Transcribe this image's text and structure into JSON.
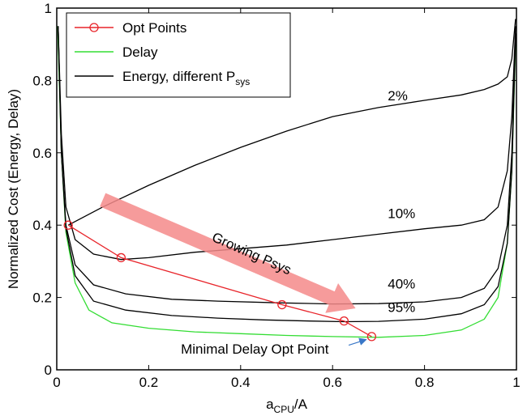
{
  "chart_data": {
    "type": "line",
    "xlabel": {
      "main": "a",
      "sub": "CPU",
      "suffix": "/A"
    },
    "ylabel": "Normalized Cost (Energy, Delay)",
    "xlim": [
      0,
      1
    ],
    "ylim": [
      0,
      1
    ],
    "xticks": [
      "0",
      "0.2",
      "0.4",
      "0.6",
      "0.8",
      "1"
    ],
    "yticks": [
      "0",
      "0.2",
      "0.4",
      "0.6",
      "0.8",
      "1"
    ],
    "xtick_values": [
      0,
      0.2,
      0.4,
      0.6,
      0.8,
      1
    ],
    "ytick_values": [
      0,
      0.2,
      0.4,
      0.6,
      0.8,
      1
    ],
    "grid": false,
    "legend_position": "top-left",
    "legend": [
      {
        "label": "Opt Points",
        "color": "#e8242a",
        "marker": "circle"
      },
      {
        "label": "Delay",
        "color": "#33dd33",
        "marker": "none"
      },
      {
        "label": "Energy, different P",
        "label_sub": "sys",
        "color": "#000000",
        "marker": "none"
      }
    ],
    "series": [
      {
        "name": "Opt Points",
        "color": "#e8242a",
        "points": [
          [
            0.025,
            0.4
          ],
          [
            0.14,
            0.31
          ],
          [
            0.49,
            0.18
          ],
          [
            0.625,
            0.135
          ],
          [
            0.685,
            0.092
          ]
        ]
      },
      {
        "name": "Delay",
        "color": "#33dd33",
        "points": [
          [
            0.002,
            0.95
          ],
          [
            0.01,
            0.6
          ],
          [
            0.02,
            0.38
          ],
          [
            0.04,
            0.24
          ],
          [
            0.07,
            0.165
          ],
          [
            0.12,
            0.13
          ],
          [
            0.2,
            0.115
          ],
          [
            0.3,
            0.105
          ],
          [
            0.4,
            0.1
          ],
          [
            0.5,
            0.095
          ],
          [
            0.6,
            0.092
          ],
          [
            0.7,
            0.09
          ],
          [
            0.8,
            0.095
          ],
          [
            0.88,
            0.11
          ],
          [
            0.93,
            0.14
          ],
          [
            0.96,
            0.2
          ],
          [
            0.98,
            0.35
          ],
          [
            0.99,
            0.55
          ],
          [
            0.998,
            0.9
          ]
        ]
      },
      {
        "name": "2%",
        "color": "#000000",
        "points": [
          [
            0.025,
            0.4
          ],
          [
            0.1,
            0.45
          ],
          [
            0.2,
            0.51
          ],
          [
            0.3,
            0.565
          ],
          [
            0.4,
            0.615
          ],
          [
            0.5,
            0.66
          ],
          [
            0.6,
            0.7
          ],
          [
            0.7,
            0.725
          ],
          [
            0.8,
            0.745
          ],
          [
            0.88,
            0.76
          ],
          [
            0.93,
            0.775
          ],
          [
            0.96,
            0.79
          ],
          [
            0.98,
            0.81
          ],
          [
            0.99,
            0.86
          ],
          [
            0.998,
            0.97
          ]
        ]
      },
      {
        "name": "10%",
        "color": "#000000",
        "points": [
          [
            0.003,
            0.95
          ],
          [
            0.01,
            0.65
          ],
          [
            0.02,
            0.45
          ],
          [
            0.04,
            0.36
          ],
          [
            0.08,
            0.32
          ],
          [
            0.14,
            0.305
          ],
          [
            0.2,
            0.31
          ],
          [
            0.3,
            0.325
          ],
          [
            0.4,
            0.335
          ],
          [
            0.5,
            0.345
          ],
          [
            0.6,
            0.36
          ],
          [
            0.7,
            0.375
          ],
          [
            0.8,
            0.39
          ],
          [
            0.88,
            0.4
          ],
          [
            0.93,
            0.415
          ],
          [
            0.96,
            0.45
          ],
          [
            0.98,
            0.55
          ],
          [
            0.99,
            0.7
          ],
          [
            0.998,
            0.95
          ]
        ]
      },
      {
        "name": "40%",
        "color": "#000000",
        "points": [
          [
            0.003,
            0.95
          ],
          [
            0.01,
            0.6
          ],
          [
            0.02,
            0.4
          ],
          [
            0.04,
            0.29
          ],
          [
            0.08,
            0.235
          ],
          [
            0.15,
            0.21
          ],
          [
            0.25,
            0.195
          ],
          [
            0.35,
            0.19
          ],
          [
            0.49,
            0.185
          ],
          [
            0.6,
            0.182
          ],
          [
            0.7,
            0.183
          ],
          [
            0.8,
            0.188
          ],
          [
            0.88,
            0.2
          ],
          [
            0.93,
            0.225
          ],
          [
            0.96,
            0.28
          ],
          [
            0.98,
            0.4
          ],
          [
            0.99,
            0.6
          ],
          [
            0.998,
            0.93
          ]
        ]
      },
      {
        "name": "95%",
        "color": "#000000",
        "points": [
          [
            0.003,
            0.95
          ],
          [
            0.01,
            0.6
          ],
          [
            0.02,
            0.39
          ],
          [
            0.04,
            0.26
          ],
          [
            0.08,
            0.19
          ],
          [
            0.15,
            0.165
          ],
          [
            0.25,
            0.15
          ],
          [
            0.35,
            0.143
          ],
          [
            0.45,
            0.138
          ],
          [
            0.55,
            0.135
          ],
          [
            0.625,
            0.133
          ],
          [
            0.7,
            0.134
          ],
          [
            0.8,
            0.14
          ],
          [
            0.88,
            0.155
          ],
          [
            0.93,
            0.18
          ],
          [
            0.96,
            0.23
          ],
          [
            0.98,
            0.35
          ],
          [
            0.99,
            0.55
          ],
          [
            0.998,
            0.92
          ]
        ]
      }
    ],
    "annotations": [
      {
        "text": "2%",
        "x": 0.72,
        "y": 0.745
      },
      {
        "text": "10%",
        "x": 0.72,
        "y": 0.42
      },
      {
        "text": "40%",
        "x": 0.72,
        "y": 0.225
      },
      {
        "text": "95%",
        "x": 0.72,
        "y": 0.16
      },
      {
        "text": "Growing Psys",
        "x": 0.42,
        "y": 0.31,
        "angle": 24
      },
      {
        "text": "Minimal Delay Opt Point",
        "x": 0.27,
        "y": 0.045
      }
    ],
    "arrows": [
      {
        "name": "growing-psys-arrow",
        "from": [
          0.1,
          0.47
        ],
        "to": [
          0.65,
          0.17
        ],
        "color": "#f48a8a"
      },
      {
        "name": "min-delay-pointer",
        "from": [
          0.635,
          0.068
        ],
        "to": [
          0.68,
          0.088
        ],
        "color": "#3a78c8"
      }
    ]
  }
}
